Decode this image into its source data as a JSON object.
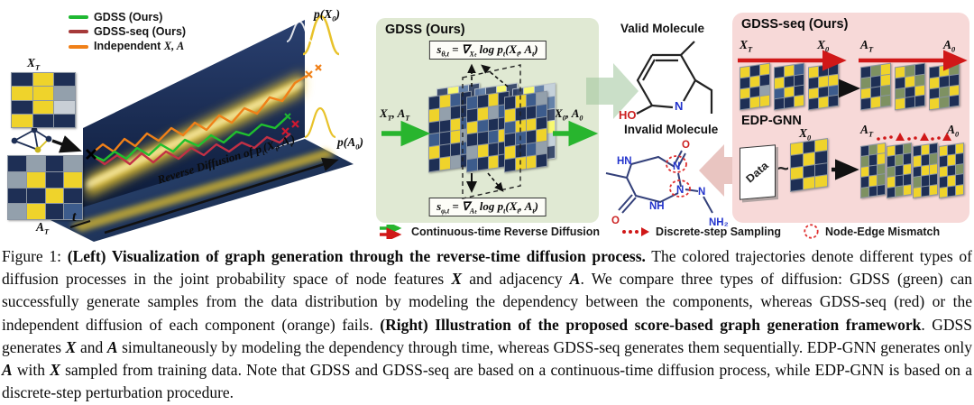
{
  "figure": {
    "left": {
      "legend": [
        {
          "color": "#1fb832",
          "label": "GDSS (Ours)"
        },
        {
          "color": "#a63a3a",
          "label": "GDSS-seq (Ours)"
        },
        {
          "color": "#f08018",
          "label": "Independent ",
          "math": "X, A"
        }
      ],
      "labels": {
        "xt": "X_{T}",
        "at": "A_{T}",
        "px0": "p(X_{0})",
        "pa0": "p(A_{0})",
        "t": "t",
        "axis": "Reverse Diffusion of  p_{t}(X_{t}, A_{t})"
      }
    },
    "gdss": {
      "title": "GDSS (Ours)",
      "eq_top": "s_{θ,t} = ∇_{Xₜ} log p_{t}(X_{t}, A_{t})",
      "eq_bottom": "s_{φ,t} = ∇_{Aₜ} log p_{t}(X_{t}, A_{t})",
      "input": "X_{T}, A_{T}",
      "output": "X_{0}, A_{0}"
    },
    "molecules": {
      "valid": "Valid Molecule",
      "invalid": "Invalid Molecule",
      "valid_atoms": {
        "ho": "HO",
        "n": "N"
      },
      "invalid_atoms": {
        "hn": "HN",
        "n1": "N",
        "n2": "N",
        "nh": "NH",
        "n3": "N",
        "nh2": "NH₂",
        "o1": "O",
        "o2": "O"
      }
    },
    "gdss_seq": {
      "title": "GDSS-seq (Ours)",
      "xt": "X_{T}",
      "x0": "X_{0}",
      "at": "A_{T}",
      "a0": "A_{0}"
    },
    "edp": {
      "title": "EDP-GNN",
      "data_label": "Data",
      "tilde": "~",
      "x0": "X_{0}",
      "at": "A_{T}",
      "a0": "A_{0}"
    },
    "legend_bottom": [
      {
        "icon": "continuous-arrows",
        "label": "Continuous-time Reverse Diffusion"
      },
      {
        "icon": "dotted-arrow",
        "label": "Discrete-step Sampling"
      },
      {
        "icon": "dashed-circle",
        "label": "Node-Edge Mismatch"
      }
    ],
    "colors": {
      "green": "#1fb832",
      "red": "#d01818",
      "darkred": "#a63a3a",
      "orange": "#f08018",
      "navy": "#1e2f55",
      "yellow": "#efd32b",
      "panel_green": "#e0e9d3",
      "panel_pink": "#f7d9d8"
    },
    "palette": {
      "n": "#1e2f55",
      "y": "#efd32b",
      "g": "#93a0ac",
      "l": "#c9cfd6",
      "b": "#3d5c8c",
      "d": "#16233f",
      "v": "#7e9162"
    },
    "matrices": {
      "xt": [
        "nyn",
        "yyg",
        "nyl",
        "ynn"
      ],
      "at": [
        "ngng",
        "gyny",
        "nnyn",
        "gynb"
      ],
      "slab1": [
        "nybn",
        "ygnn",
        "nnyb",
        "bnyg",
        "ynnb",
        "nygn"
      ],
      "slab2": [
        "bnyn",
        "nygb",
        "ybnn",
        "nnby",
        "gynn",
        "bnyn"
      ],
      "slab3": [
        "nybg",
        "ynnb",
        "byyn",
        "nbny",
        "ynbg",
        "nyyn"
      ],
      "seq1": [
        "yny",
        "nyn",
        "yng",
        "nyy"
      ],
      "seq2": [
        "nyb",
        "ynn",
        "byn",
        "nny"
      ],
      "seq3": [
        "ynn",
        "nyy",
        "ynb",
        "nyn"
      ],
      "seq4": [
        "nvy",
        "vny",
        "ynv",
        "nyv"
      ],
      "seq5": [
        "yvn",
        "nyv",
        "vny",
        "ynn"
      ],
      "seq6": [
        "nyv",
        "ynn",
        "nvy",
        "yvn"
      ],
      "edp_x0": [
        "yny",
        "nyn",
        "ynn",
        "nyy"
      ],
      "edp1": [
        "nvy",
        "vny",
        "ynv",
        "nyv",
        "vnn"
      ],
      "edp2": [
        "ynv",
        "nvn",
        "vny",
        "ynn",
        "nvy"
      ],
      "edp3": [
        "nyn",
        "ynv",
        "nyy",
        "vnn",
        "yny"
      ],
      "edp4": [
        "yny",
        "nyn",
        "ynv",
        "nyn",
        "yny"
      ]
    }
  },
  "caption": {
    "segments": [
      {
        "t": "Figure 1: "
      },
      {
        "t": "(Left) Visualization of graph generation through the reverse-time diffusion process.",
        "b": true
      },
      {
        "t": " The colored trajectories denote different types of diffusion processes in the joint probability space of node features "
      },
      {
        "t": "X",
        "m": true
      },
      {
        "t": " and adjacency "
      },
      {
        "t": "A",
        "m": true
      },
      {
        "t": ". We compare three types of diffusion: GDSS (green) can successfully generate samples from the data distribution by modeling the dependency between the components, whereas GDSS-seq (red) or the independent diffusion of each component (orange) fails. "
      },
      {
        "t": "(Right) Illustration of the proposed score-based graph generation framework",
        "b": true
      },
      {
        "t": ". GDSS generates "
      },
      {
        "t": "X",
        "m": true
      },
      {
        "t": " and "
      },
      {
        "t": "A",
        "m": true
      },
      {
        "t": " simultaneously by modeling the dependency through time, whereas GDSS-seq generates them sequentially. EDP-GNN generates only "
      },
      {
        "t": "A",
        "m": true
      },
      {
        "t": " with "
      },
      {
        "t": "X",
        "m": true
      },
      {
        "t": " sampled from training data. Note that GDSS and GDSS-seq are based on a continuous-time diffusion process, while EDP-GNN is based on a discrete-step perturbation procedure."
      }
    ]
  }
}
